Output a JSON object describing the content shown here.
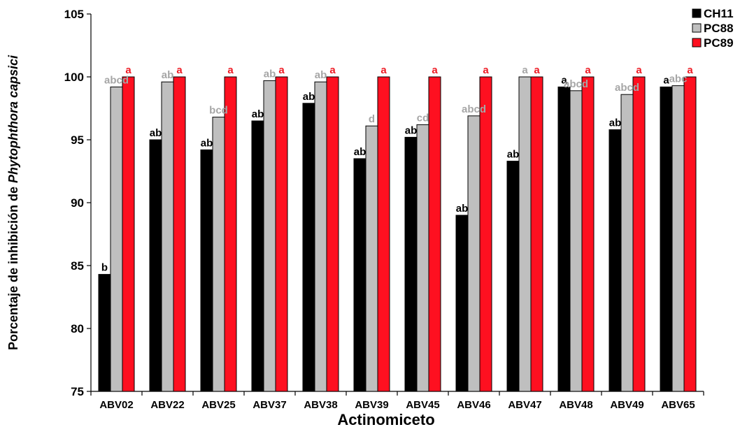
{
  "chart_data": {
    "type": "bar",
    "xlabel": "Actinomiceto",
    "ylabel_parts": [
      {
        "text": "Porcentaje de inhibición de ",
        "italic": false
      },
      {
        "text": "Phytophthora capsici",
        "italic": true
      }
    ],
    "ylim": [
      75,
      105
    ],
    "yticks": [
      75,
      80,
      85,
      90,
      95,
      100,
      105
    ],
    "grid": false,
    "legend_position": "top-right",
    "categories": [
      "ABV02",
      "ABV22",
      "ABV25",
      "ABV37",
      "ABV38",
      "ABV39",
      "ABV45",
      "ABV46",
      "ABV47",
      "ABV48",
      "ABV49",
      "ABV65"
    ],
    "series": [
      {
        "name": "CH11",
        "color": "#000000",
        "label_color": "#000000",
        "values": [
          84.3,
          95.0,
          94.2,
          96.5,
          97.9,
          93.5,
          95.2,
          89.0,
          93.3,
          99.2,
          95.8,
          99.2
        ],
        "labels": [
          "b",
          "ab",
          "ab",
          "ab",
          "ab",
          "ab",
          "ab",
          "ab",
          "ab",
          "a",
          "ab",
          "a"
        ]
      },
      {
        "name": "PC88",
        "color": "#bfbfbf",
        "label_color": "#a6a6a6",
        "values": [
          99.2,
          99.6,
          96.8,
          99.7,
          99.6,
          96.1,
          96.2,
          96.9,
          100.0,
          98.9,
          98.6,
          99.3
        ],
        "labels": [
          "abcd",
          "ab",
          "bcd",
          "ab",
          "ab",
          "d",
          "cd",
          "abcd",
          "a",
          "abcd",
          "abcd",
          "abc"
        ]
      },
      {
        "name": "PC89",
        "color": "#fe1020",
        "label_color": "#ee1c25",
        "values": [
          100,
          100,
          100,
          100,
          100,
          100,
          100,
          100,
          100,
          100,
          100,
          100
        ],
        "labels": [
          "a",
          "a",
          "a",
          "a",
          "a",
          "a",
          "a",
          "a",
          "a",
          "a",
          "a",
          "a"
        ]
      }
    ]
  }
}
